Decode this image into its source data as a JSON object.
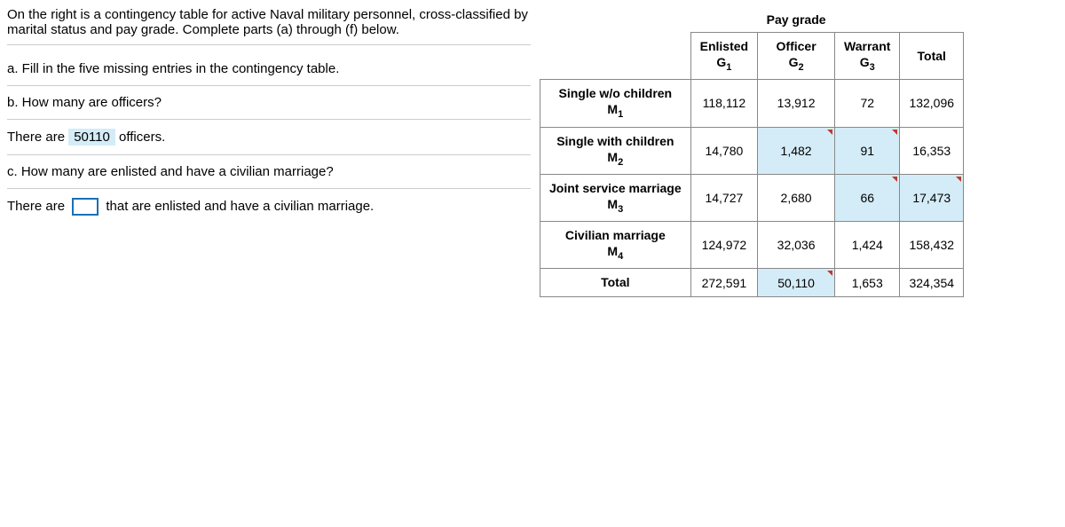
{
  "intro": "On the right is a contingency table for active Naval military personnel, cross-classified by marital status and pay grade. Complete parts (a) through (f) below.",
  "questions": {
    "a": "a. Fill in the five missing entries in the contingency table.",
    "b": "b. How many are officers?",
    "b_answer_pre": "There are",
    "b_answer_val": "50110",
    "b_answer_post": "officers.",
    "c": "c. How many are enlisted and have a civilian marriage?",
    "c_answer_pre": "There are",
    "c_answer_post": "that are enlisted and have a civilian marriage."
  },
  "table": {
    "super_header": "Pay grade",
    "col_headers": {
      "enlisted": "Enlisted",
      "enlisted_sub": "G",
      "enlisted_idx": "1",
      "officer": "Officer",
      "officer_sub": "G",
      "officer_idx": "2",
      "warrant": "Warrant",
      "warrant_sub": "G",
      "warrant_idx": "3",
      "total": "Total"
    },
    "rows": [
      {
        "label_line1": "Single w/o children",
        "label_sub": "M",
        "label_idx": "1",
        "c1": "118,112",
        "c2": "13,912",
        "c3": "72",
        "total": "132,096",
        "hl": []
      },
      {
        "label_line1": "Single with children",
        "label_sub": "M",
        "label_idx": "2",
        "c1": "14,780",
        "c2": "1,482",
        "c3": "91",
        "total": "16,353",
        "hl": [
          "c2",
          "c3"
        ]
      },
      {
        "label_line1": "Joint service marriage",
        "label_sub": "M",
        "label_idx": "3",
        "c1": "14,727",
        "c2": "2,680",
        "c3": "66",
        "total": "17,473",
        "hl": [
          "c3",
          "total"
        ]
      },
      {
        "label_line1": "Civilian marriage",
        "label_sub": "M",
        "label_idx": "4",
        "c1": "124,972",
        "c2": "32,036",
        "c3": "1,424",
        "total": "158,432",
        "hl": []
      },
      {
        "label_line1": "Total",
        "label_sub": "",
        "label_idx": "",
        "c1": "272,591",
        "c2": "50,110",
        "c3": "1,653",
        "total": "324,354",
        "hl": [
          "c2"
        ]
      }
    ]
  }
}
